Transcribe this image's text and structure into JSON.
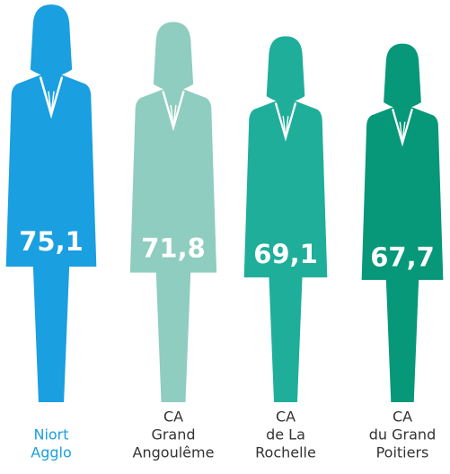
{
  "chart_data": {
    "type": "pictogram",
    "categories": [
      [
        "Niort",
        "Agglo"
      ],
      [
        "CA",
        "Grand",
        "Angoulême"
      ],
      [
        "CA",
        "de La",
        "Rochelle"
      ],
      [
        "CA",
        "du Grand",
        "Poitiers"
      ]
    ],
    "values": [
      75.1,
      71.8,
      69.1,
      67.7
    ],
    "value_labels": [
      "75,1",
      "71,8",
      "69,1",
      "67,7"
    ],
    "colors": [
      "#1a9fe0",
      "#8ecdc0",
      "#1fae9a",
      "#079779"
    ],
    "label_colors": [
      "#1a9fe0",
      "#333333",
      "#333333",
      "#333333"
    ]
  }
}
